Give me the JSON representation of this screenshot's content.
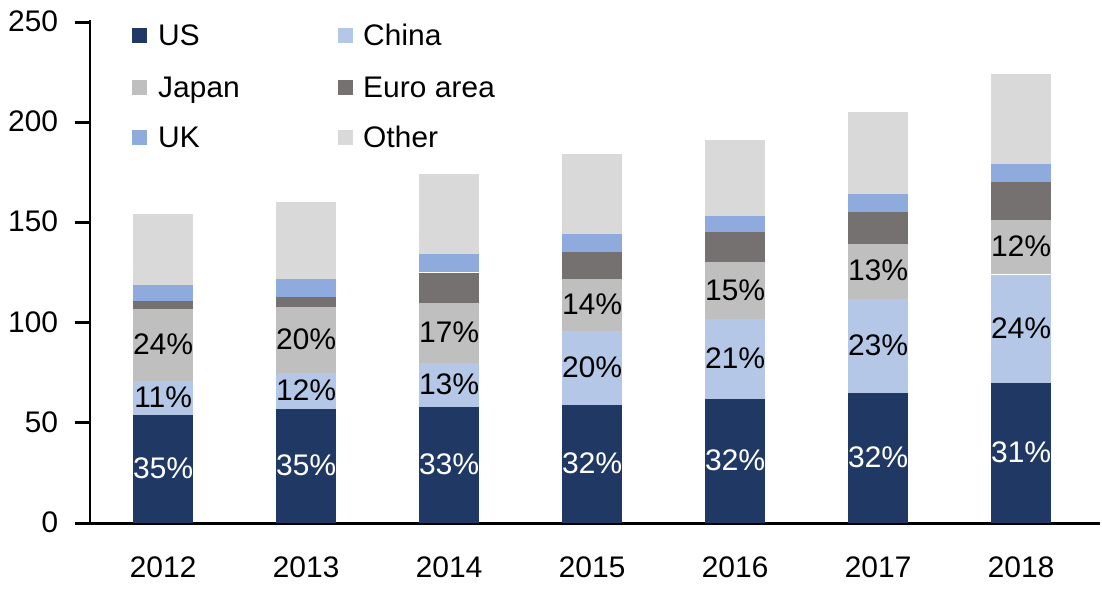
{
  "chart_data": {
    "type": "bar",
    "stacked": true,
    "categories": [
      "2012",
      "2013",
      "2014",
      "2015",
      "2016",
      "2017",
      "2018"
    ],
    "series": [
      {
        "name": "US",
        "color": "#1F3864",
        "label_color": "#FFFFFF",
        "values": [
          54,
          57,
          58,
          59,
          62,
          65,
          70
        ],
        "bar_labels": [
          "35%",
          "35%",
          "33%",
          "32%",
          "32%",
          "32%",
          "31%"
        ]
      },
      {
        "name": "China",
        "color": "#B4C7E7",
        "label_color": "#000000",
        "values": [
          17,
          18,
          22,
          37,
          40,
          47,
          54
        ],
        "bar_labels": [
          "11%",
          "12%",
          "13%",
          "20%",
          "21%",
          "23%",
          "24%"
        ]
      },
      {
        "name": "Japan",
        "color": "#BFBFBF",
        "label_color": "#000000",
        "values": [
          36,
          33,
          30,
          26,
          28,
          27,
          27
        ],
        "bar_labels": [
          "24%",
          "20%",
          "17%",
          "14%",
          "15%",
          "13%",
          "12%"
        ]
      },
      {
        "name": "Euro area",
        "color": "#767171",
        "label_color": null,
        "values": [
          4,
          5,
          15,
          13,
          15,
          16,
          19
        ],
        "bar_labels": null
      },
      {
        "name": "UK",
        "color": "#8FAADC",
        "label_color": null,
        "values": [
          8,
          9,
          9,
          9,
          8,
          9,
          9
        ],
        "bar_labels": null
      },
      {
        "name": "Other",
        "color": "#D9D9D9",
        "label_color": null,
        "values": [
          35,
          38,
          40,
          40,
          38,
          41,
          45
        ],
        "bar_labels": null
      }
    ],
    "totals": [
      154,
      160,
      174,
      184,
      191,
      205,
      224
    ],
    "ylim": [
      0,
      250
    ],
    "yticks": [
      0,
      50,
      100,
      150,
      200,
      250
    ],
    "ytick_labels": [
      "0",
      "50",
      "100",
      "150",
      "200",
      "250"
    ],
    "grid": false,
    "legend_position": "top-left",
    "legend_rows": [
      [
        "US",
        "China"
      ],
      [
        "Japan",
        "Euro area"
      ],
      [
        "UK",
        "Other"
      ]
    ],
    "axis_color": "#000000",
    "background": "#FFFFFF"
  }
}
